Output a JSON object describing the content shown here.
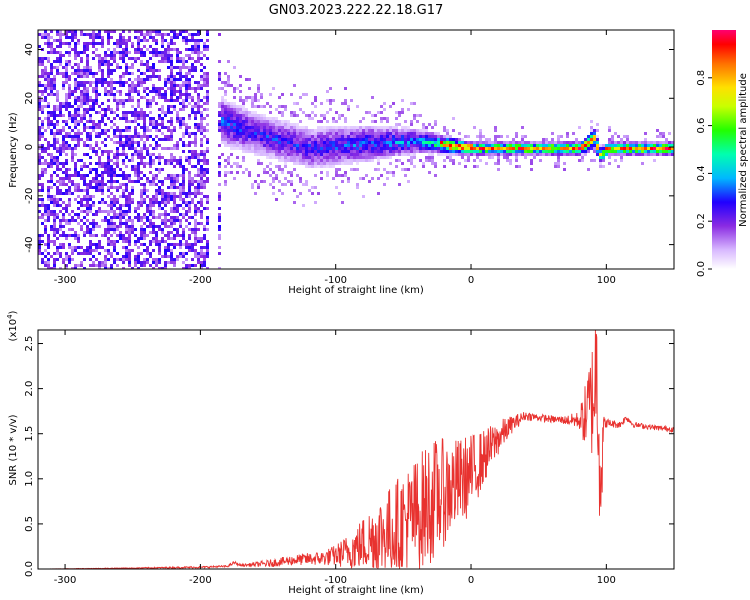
{
  "title": "GN03.2023.222.22.18.G17",
  "chart_data": [
    {
      "type": "heatmap",
      "xlabel": "Height of straight line (km)",
      "ylabel": "Frequency (Hz)",
      "xlim": [
        -320,
        150
      ],
      "ylim": [
        -50,
        48
      ],
      "x_ticks": [
        -300,
        -200,
        -100,
        0,
        100
      ],
      "y_ticks": [
        -40,
        -20,
        0,
        20,
        40
      ],
      "colorbar": {
        "label": "Normalized spectral amplitude",
        "range": [
          0.0,
          1.0
        ],
        "ticks": [
          0.0,
          0.2,
          0.4,
          0.6,
          0.8
        ],
        "tick_labels": [
          "0.0",
          "0.2",
          "0.4",
          "0.6",
          "0.8"
        ]
      },
      "ridge": {
        "description_points_x": [
          -320,
          -200,
          -190,
          -160,
          -120,
          -80,
          -40,
          0,
          40,
          80,
          90,
          95,
          100,
          120,
          150
        ],
        "center_freq_hz": [
          0,
          0,
          12,
          6,
          0,
          2,
          3,
          0,
          0,
          0,
          4,
          -3,
          0,
          0,
          0
        ],
        "half_width_hz": [
          48,
          48,
          12,
          10,
          10,
          9,
          6,
          3,
          3,
          3,
          5,
          4,
          3,
          3,
          3
        ],
        "peak_amplitude": [
          0.45,
          0.45,
          0.35,
          0.3,
          0.3,
          0.35,
          0.4,
          0.85,
          0.85,
          0.9,
          0.7,
          0.7,
          0.85,
          0.9,
          0.9
        ]
      }
    },
    {
      "type": "line",
      "xlabel": "Height of straight line (km)",
      "ylabel": "SNR (10 * v/v)",
      "y_multiplier_label": "(x10",
      "y_multiplier_exp": "4",
      "xlim": [
        -320,
        150
      ],
      "ylim": [
        0,
        2.65
      ],
      "x_ticks": [
        -300,
        -200,
        -100,
        0,
        100
      ],
      "y_ticks": [
        0.0,
        0.5,
        1.0,
        1.5,
        2.0,
        2.5
      ],
      "y_tick_labels": [
        "0.0",
        "0.5",
        "1.0",
        "1.5",
        "2.0",
        "2.5"
      ],
      "color": "#e8322f",
      "series": [
        {
          "x": [
            -320,
            -250,
            -200,
            -180,
            -175,
            -170,
            -150,
            -130,
            -110,
            -100,
            -90,
            -80,
            -70,
            -60,
            -50,
            -40,
            -30,
            -20,
            -10,
            0,
            10,
            20,
            30,
            40,
            50,
            60,
            70,
            80,
            85,
            90,
            93,
            96,
            98,
            100,
            110,
            115,
            120,
            130,
            140,
            150
          ],
          "y": [
            0.0,
            0.01,
            0.02,
            0.03,
            0.07,
            0.04,
            0.06,
            0.1,
            0.12,
            0.15,
            0.2,
            0.28,
            0.35,
            0.42,
            0.5,
            0.6,
            0.75,
            0.85,
            0.95,
            1.05,
            1.25,
            1.45,
            1.6,
            1.7,
            1.68,
            1.66,
            1.65,
            1.65,
            1.7,
            1.9,
            2.3,
            1.0,
            1.6,
            1.62,
            1.6,
            1.68,
            1.6,
            1.58,
            1.56,
            1.55
          ],
          "noise_amplitude": [
            0.0,
            0.005,
            0.01,
            0.01,
            0.02,
            0.01,
            0.04,
            0.06,
            0.08,
            0.12,
            0.2,
            0.3,
            0.45,
            0.5,
            0.6,
            0.65,
            0.7,
            0.6,
            0.5,
            0.45,
            0.3,
            0.2,
            0.1,
            0.05,
            0.04,
            0.04,
            0.05,
            0.1,
            0.4,
            0.7,
            0.9,
            0.9,
            0.1,
            0.05,
            0.04,
            0.04,
            0.03,
            0.03,
            0.03,
            0.03
          ]
        }
      ]
    }
  ]
}
